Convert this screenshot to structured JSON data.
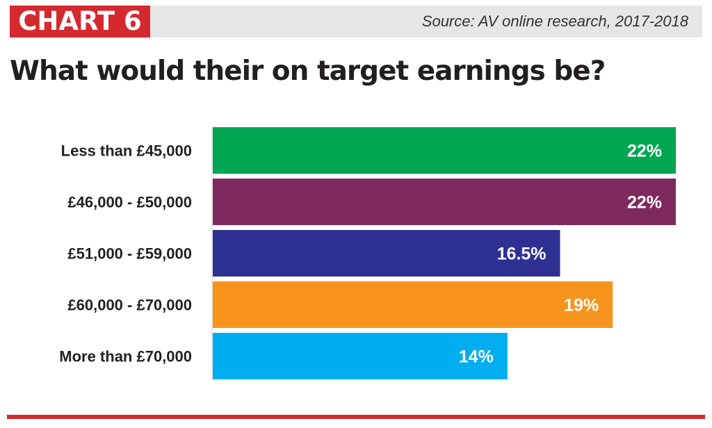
{
  "header": {
    "tag": "CHART 6",
    "source": "Source: AV online research, 2017-2018"
  },
  "chart_data": {
    "type": "bar",
    "orientation": "horizontal",
    "title": "What would their on target earnings be?",
    "categories": [
      "Less than £45,000",
      "£46,000 - £50,000",
      "£51,000 - £59,000",
      "£60,000 - £70,000",
      "More than £70,000"
    ],
    "values": [
      22,
      22,
      16.5,
      19,
      14
    ],
    "value_labels": [
      "22%",
      "22%",
      "16.5%",
      "19%",
      "14%"
    ],
    "unit": "%",
    "colors": [
      "#00a651",
      "#7f2a5e",
      "#2e3192",
      "#f7941d",
      "#00aeef"
    ],
    "xlim": [
      0,
      22
    ],
    "grid": false,
    "legend": "none"
  },
  "colors": {
    "accent": "#d42a2f",
    "header_band": "#e6e6e6",
    "text": "#231f20"
  }
}
